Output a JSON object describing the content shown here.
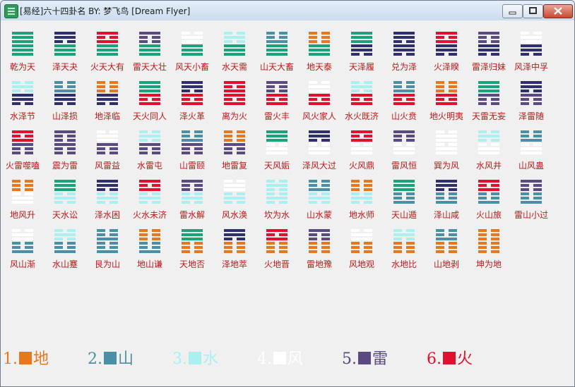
{
  "window": {
    "title": "[易经]六十四卦名  BY: 梦飞鸟 [Dream Flyer]"
  },
  "trigrams": {
    "乾": {
      "color": "#1aa37a",
      "lines": [
        1,
        1,
        1
      ]
    },
    "兑": {
      "color": "#2f2f6b",
      "lines": [
        1,
        1,
        0
      ]
    },
    "离": {
      "color": "#e0102e",
      "lines": [
        1,
        0,
        1
      ]
    },
    "震": {
      "color": "#5b4a80",
      "lines": [
        1,
        0,
        0
      ]
    },
    "巽": {
      "color": "#ffffff",
      "lines": [
        0,
        1,
        1
      ]
    },
    "坎": {
      "color": "#aaf0f0",
      "lines": [
        0,
        1,
        0
      ]
    },
    "艮": {
      "color": "#4a8fa5",
      "lines": [
        0,
        0,
        1
      ]
    },
    "坤": {
      "color": "#e6781e",
      "lines": [
        0,
        0,
        0
      ]
    }
  },
  "hexagrams": [
    {
      "name": "乾为天",
      "upper": "乾",
      "lower": "乾"
    },
    {
      "name": "泽天夬",
      "upper": "兑",
      "lower": "乾"
    },
    {
      "name": "火天大有",
      "upper": "离",
      "lower": "乾"
    },
    {
      "name": "雷天大壮",
      "upper": "震",
      "lower": "乾"
    },
    {
      "name": "风天小畜",
      "upper": "巽",
      "lower": "乾"
    },
    {
      "name": "水天需",
      "upper": "坎",
      "lower": "乾"
    },
    {
      "name": "山天大畜",
      "upper": "艮",
      "lower": "乾"
    },
    {
      "name": "地天泰",
      "upper": "坤",
      "lower": "乾"
    },
    {
      "name": "天泽履",
      "upper": "乾",
      "lower": "兑"
    },
    {
      "name": "兑为泽",
      "upper": "兑",
      "lower": "兑"
    },
    {
      "name": "火泽睽",
      "upper": "离",
      "lower": "兑"
    },
    {
      "name": "雷泽归妹",
      "upper": "震",
      "lower": "兑"
    },
    {
      "name": "风泽中孚",
      "upper": "巽",
      "lower": "兑"
    },
    {
      "name": "水泽节",
      "upper": "坎",
      "lower": "兑"
    },
    {
      "name": "山泽损",
      "upper": "艮",
      "lower": "兑"
    },
    {
      "name": "地泽临",
      "upper": "坤",
      "lower": "兑"
    },
    {
      "name": "天火同人",
      "upper": "乾",
      "lower": "离"
    },
    {
      "name": "泽火革",
      "upper": "兑",
      "lower": "离"
    },
    {
      "name": "离为火",
      "upper": "离",
      "lower": "离"
    },
    {
      "name": "雷火丰",
      "upper": "震",
      "lower": "离"
    },
    {
      "name": "风火家人",
      "upper": "巽",
      "lower": "离"
    },
    {
      "name": "水火既济",
      "upper": "坎",
      "lower": "离"
    },
    {
      "name": "山火贲",
      "upper": "艮",
      "lower": "离"
    },
    {
      "name": "地火明夷",
      "upper": "坤",
      "lower": "离"
    },
    {
      "name": "天雷无妄",
      "upper": "乾",
      "lower": "震"
    },
    {
      "name": "泽雷随",
      "upper": "兑",
      "lower": "震"
    },
    {
      "name": "火雷噬嗑",
      "upper": "离",
      "lower": "震"
    },
    {
      "name": "震为雷",
      "upper": "震",
      "lower": "震"
    },
    {
      "name": "风雷益",
      "upper": "巽",
      "lower": "震"
    },
    {
      "name": "水雷屯",
      "upper": "坎",
      "lower": "震"
    },
    {
      "name": "山雷颐",
      "upper": "艮",
      "lower": "震"
    },
    {
      "name": "地雷复",
      "upper": "坤",
      "lower": "震"
    },
    {
      "name": "天风姤",
      "upper": "乾",
      "lower": "巽"
    },
    {
      "name": "泽风大过",
      "upper": "兑",
      "lower": "巽"
    },
    {
      "name": "火风鼎",
      "upper": "离",
      "lower": "巽"
    },
    {
      "name": "雷风恒",
      "upper": "震",
      "lower": "巽"
    },
    {
      "name": "巽为风",
      "upper": "巽",
      "lower": "巽"
    },
    {
      "name": "水风井",
      "upper": "坎",
      "lower": "巽"
    },
    {
      "name": "山风蛊",
      "upper": "艮",
      "lower": "巽"
    },
    {
      "name": "地风升",
      "upper": "坤",
      "lower": "巽"
    },
    {
      "name": "天水讼",
      "upper": "乾",
      "lower": "坎"
    },
    {
      "name": "泽水困",
      "upper": "兑",
      "lower": "坎"
    },
    {
      "name": "火水未济",
      "upper": "离",
      "lower": "坎"
    },
    {
      "name": "雷水解",
      "upper": "震",
      "lower": "坎"
    },
    {
      "name": "风水涣",
      "upper": "巽",
      "lower": "坎"
    },
    {
      "name": "坎为水",
      "upper": "坎",
      "lower": "坎"
    },
    {
      "name": "山水蒙",
      "upper": "艮",
      "lower": "坎"
    },
    {
      "name": "地水师",
      "upper": "坤",
      "lower": "坎"
    },
    {
      "name": "天山遁",
      "upper": "乾",
      "lower": "艮"
    },
    {
      "name": "泽山咸",
      "upper": "兑",
      "lower": "艮"
    },
    {
      "name": "火山旅",
      "upper": "离",
      "lower": "艮"
    },
    {
      "name": "雷山小过",
      "upper": "震",
      "lower": "艮"
    },
    {
      "name": "风山渐",
      "upper": "巽",
      "lower": "艮"
    },
    {
      "name": "水山蹇",
      "upper": "坎",
      "lower": "艮"
    },
    {
      "name": "艮为山",
      "upper": "艮",
      "lower": "艮"
    },
    {
      "name": "地山谦",
      "upper": "坤",
      "lower": "艮"
    },
    {
      "name": "天地否",
      "upper": "乾",
      "lower": "坤"
    },
    {
      "name": "泽地萃",
      "upper": "兑",
      "lower": "坤"
    },
    {
      "name": "火地晋",
      "upper": "离",
      "lower": "坤"
    },
    {
      "name": "雷地豫",
      "upper": "震",
      "lower": "坤"
    },
    {
      "name": "风地观",
      "upper": "巽",
      "lower": "坤"
    },
    {
      "name": "水地比",
      "upper": "坎",
      "lower": "坤"
    },
    {
      "name": "山地剥",
      "upper": "艮",
      "lower": "坤"
    },
    {
      "name": "坤为地",
      "upper": "坤",
      "lower": "坤"
    }
  ],
  "legend": [
    {
      "label": "1.",
      "word": "地",
      "color": "#e6781e"
    },
    {
      "label": "2.",
      "word": "山",
      "color": "#4a8fa5"
    },
    {
      "label": "3.",
      "word": "水",
      "color": "#aaf0f0"
    },
    {
      "label": "4.",
      "word": "风",
      "color": "#ffffff"
    },
    {
      "label": "5.",
      "word": "雷",
      "color": "#5b4a80"
    },
    {
      "label": "6.",
      "word": "火",
      "color": "#e0102e"
    }
  ]
}
